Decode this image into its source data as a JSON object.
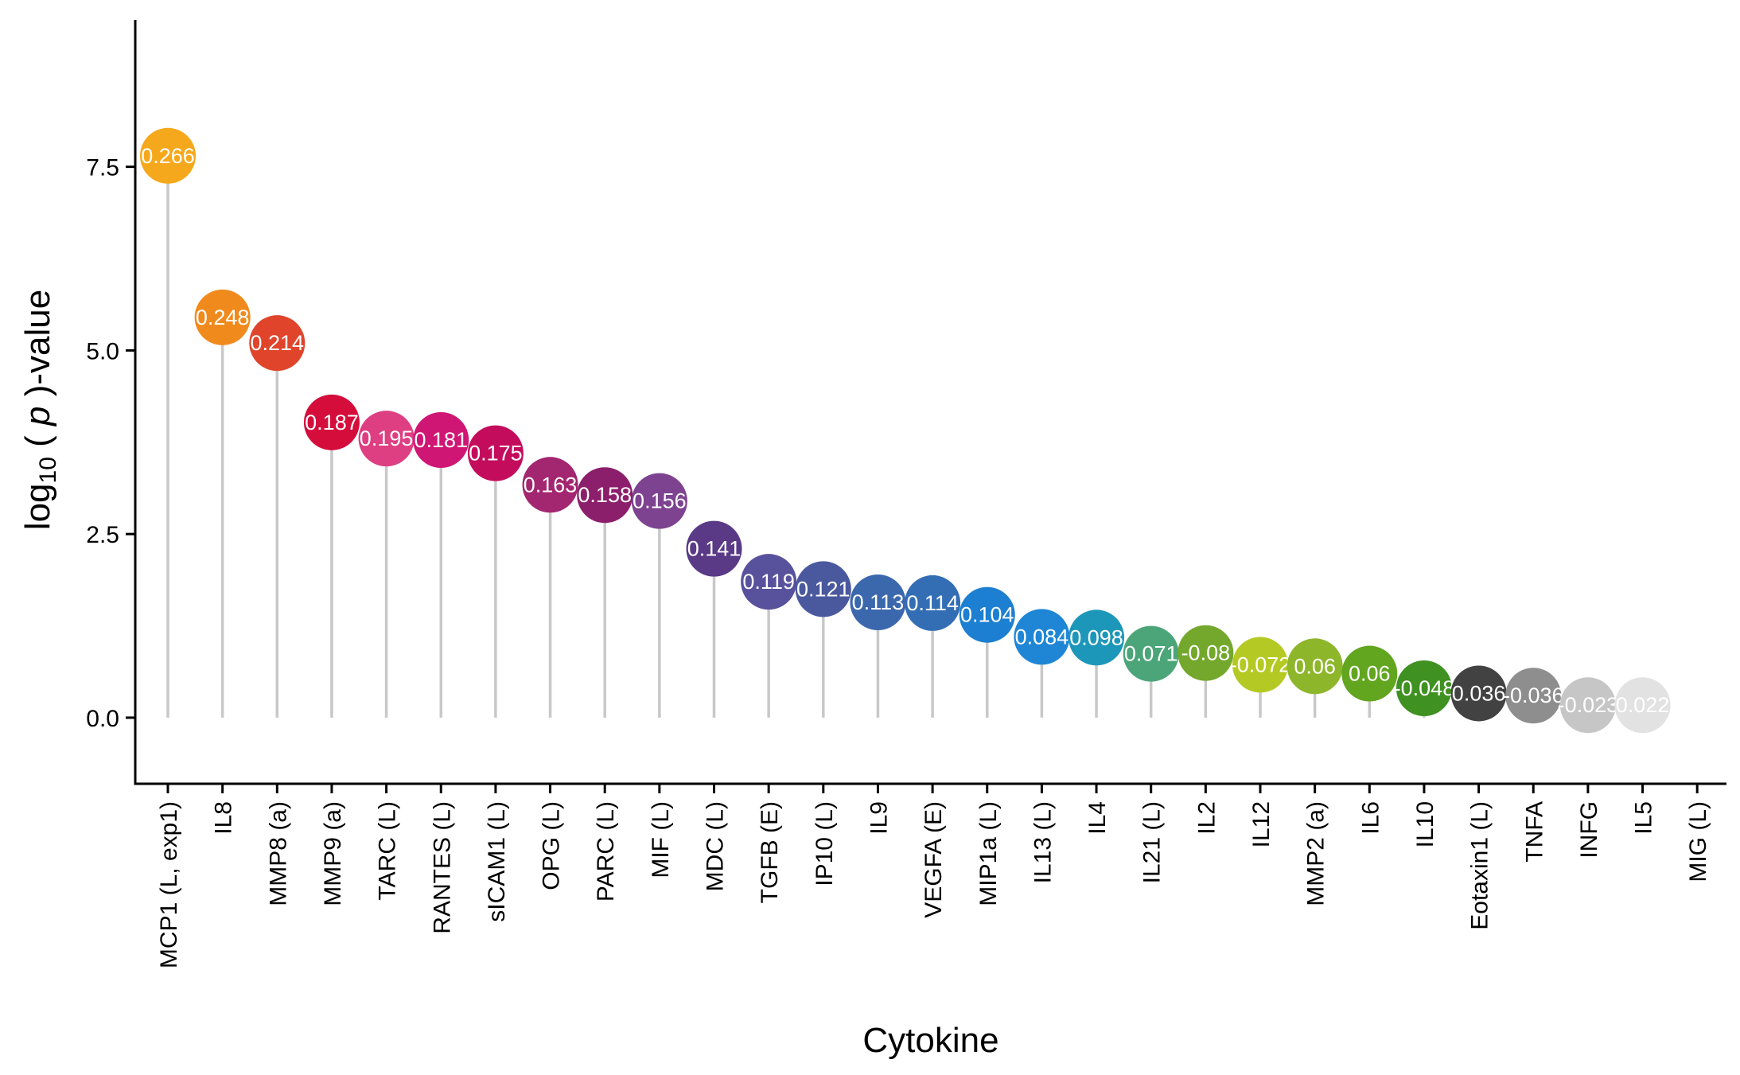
{
  "chart_data": {
    "type": "lollipop",
    "xlabel": "Cytokine",
    "ylabel": {
      "prefix": "log",
      "subscript": "10",
      "open": " ( ",
      "italic": "p",
      "close": " )-value"
    },
    "ylim": [
      -0.9,
      9.5
    ],
    "yticks": [
      0.0,
      2.5,
      5.0,
      7.5
    ],
    "ytick_labels": [
      "0.0",
      "2.5",
      "5.0",
      "7.5"
    ],
    "grid": false,
    "legend": "none",
    "stem_color": "#c8c8c8",
    "points": [
      {
        "category": "MCP1 (L, exp1)",
        "value": 7.65,
        "label": "0.266",
        "color": "#f6a81c"
      },
      {
        "category": "IL8",
        "value": 5.45,
        "label": "0.248",
        "color": "#f18a1c"
      },
      {
        "category": "MMP8 (a)",
        "value": 5.1,
        "label": "0.214",
        "color": "#e0442b"
      },
      {
        "category": "MMP9 (a)",
        "value": 4.02,
        "label": "0.187",
        "color": "#d40d3b"
      },
      {
        "category": "TARC (L)",
        "value": 3.8,
        "label": "0.195",
        "color": "#de3e82"
      },
      {
        "category": "RANTES (L)",
        "value": 3.78,
        "label": "0.181",
        "color": "#d01674"
      },
      {
        "category": "sICAM1 (L)",
        "value": 3.6,
        "label": "0.175",
        "color": "#c40c5d"
      },
      {
        "category": "OPG (L)",
        "value": 3.17,
        "label": "0.163",
        "color": "#a32670"
      },
      {
        "category": "PARC (L)",
        "value": 3.03,
        "label": "0.158",
        "color": "#8c1f6b"
      },
      {
        "category": "MIF (L)",
        "value": 2.95,
        "label": "0.156",
        "color": "#7e4390"
      },
      {
        "category": "MDC (L)",
        "value": 2.3,
        "label": "0.141",
        "color": "#5a3a87"
      },
      {
        "category": "TGFB (E)",
        "value": 1.85,
        "label": "0.119",
        "color": "#58529d"
      },
      {
        "category": "IP10 (L)",
        "value": 1.75,
        "label": "0.121",
        "color": "#4a589e"
      },
      {
        "category": "IL9",
        "value": 1.57,
        "label": "0.113",
        "color": "#3b68ad"
      },
      {
        "category": "VEGFA (E)",
        "value": 1.56,
        "label": "0.114",
        "color": "#336eb5"
      },
      {
        "category": "MIP1a (L)",
        "value": 1.4,
        "label": "0.104",
        "color": "#1c7fd1"
      },
      {
        "category": "IL13 (L)",
        "value": 1.1,
        "label": "0.084",
        "color": "#1f86d6"
      },
      {
        "category": "IL4",
        "value": 1.09,
        "label": "0.098",
        "color": "#1d97b9"
      },
      {
        "category": "IL21 (L)",
        "value": 0.87,
        "label": "0.071",
        "color": "#4ca579"
      },
      {
        "category": "IL2",
        "value": 0.88,
        "label": "-0.08",
        "color": "#74a82d"
      },
      {
        "category": "IL12",
        "value": 0.72,
        "label": "-0.072",
        "color": "#b4c923"
      },
      {
        "category": "MMP2 (a)",
        "value": 0.7,
        "label": "0.06",
        "color": "#8db62b"
      },
      {
        "category": "IL6",
        "value": 0.6,
        "label": "0.06",
        "color": "#62a51f"
      },
      {
        "category": "IL10",
        "value": 0.4,
        "label": "-0.048",
        "color": "#3f9121"
      },
      {
        "category": "Eotaxin1 (L)",
        "value": 0.33,
        "label": "0.036",
        "color": "#424242"
      },
      {
        "category": "TNFA",
        "value": 0.3,
        "label": "-0.036",
        "color": "#8e8e8e"
      },
      {
        "category": "INFG",
        "value": 0.17,
        "label": "-0.023",
        "color": "#c6c6c6"
      },
      {
        "category": "IL5",
        "value": 0.17,
        "label": "0.022",
        "color": "#e2e2e2"
      },
      {
        "category": "MIG (L)",
        "value": null,
        "label": "",
        "color": "#f5f5f5"
      }
    ]
  }
}
